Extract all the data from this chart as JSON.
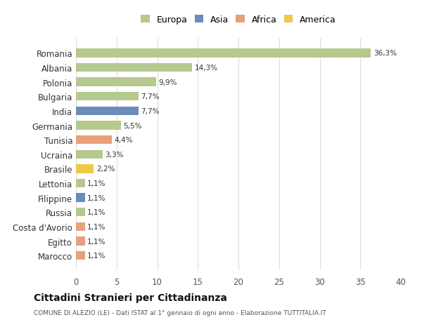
{
  "countries": [
    "Romania",
    "Albania",
    "Polonia",
    "Bulgaria",
    "India",
    "Germania",
    "Tunisia",
    "Ucraina",
    "Brasile",
    "Lettonia",
    "Filippine",
    "Russia",
    "Costa d'Avorio",
    "Egitto",
    "Marocco"
  ],
  "values": [
    36.3,
    14.3,
    9.9,
    7.7,
    7.7,
    5.5,
    4.4,
    3.3,
    2.2,
    1.1,
    1.1,
    1.1,
    1.1,
    1.1,
    1.1
  ],
  "labels": [
    "36,3%",
    "14,3%",
    "9,9%",
    "7,7%",
    "7,7%",
    "5,5%",
    "4,4%",
    "3,3%",
    "2,2%",
    "1,1%",
    "1,1%",
    "1,1%",
    "1,1%",
    "1,1%",
    "1,1%"
  ],
  "continents": [
    "Europa",
    "Europa",
    "Europa",
    "Europa",
    "Asia",
    "Europa",
    "Africa",
    "Europa",
    "America",
    "Europa",
    "Asia",
    "Europa",
    "Africa",
    "Africa",
    "Africa"
  ],
  "continent_colors": {
    "Europa": "#b5c98e",
    "Asia": "#6b8cba",
    "Africa": "#e8a07a",
    "America": "#f0c84a"
  },
  "legend_labels": [
    "Europa",
    "Asia",
    "Africa",
    "America"
  ],
  "legend_colors": [
    "#b5c98e",
    "#6b8cba",
    "#e8a07a",
    "#f0c84a"
  ],
  "title": "Cittadini Stranieri per Cittadinanza",
  "subtitle": "COMUNE DI ALEZIO (LE) - Dati ISTAT al 1° gennaio di ogni anno - Elaborazione TUTTITALIA.IT",
  "xlim": [
    0,
    40
  ],
  "xticks": [
    0,
    5,
    10,
    15,
    20,
    25,
    30,
    35,
    40
  ],
  "bg_color": "#ffffff",
  "grid_color": "#dddddd"
}
